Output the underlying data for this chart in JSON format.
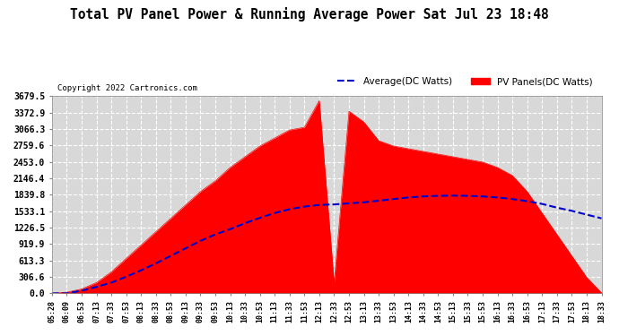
{
  "title": "Total PV Panel Power & Running Average Power Sat Jul 23 18:48",
  "copyright": "Copyright 2022 Cartronics.com",
  "legend_avg": "Average(DC Watts)",
  "legend_pv": "PV Panels(DC Watts)",
  "yticks": [
    0.0,
    306.6,
    613.3,
    919.9,
    1226.5,
    1533.1,
    1839.8,
    2146.4,
    2453.0,
    2759.6,
    3066.3,
    3372.9,
    3679.5
  ],
  "ymax": 3679.5,
  "ymin": 0.0,
  "bg_color": "#ffffff",
  "plot_bg_color": "#d8d8d8",
  "grid_color": "#ffffff",
  "pv_color": "#ff0000",
  "avg_color": "#0000cc",
  "xtick_labels": [
    "05:28",
    "06:09",
    "06:53",
    "07:13",
    "07:33",
    "07:53",
    "08:13",
    "08:33",
    "08:53",
    "09:13",
    "09:33",
    "09:53",
    "10:13",
    "10:33",
    "10:53",
    "11:13",
    "11:33",
    "11:53",
    "12:13",
    "12:33",
    "12:53",
    "13:13",
    "13:33",
    "13:53",
    "14:13",
    "14:33",
    "14:53",
    "15:13",
    "15:33",
    "15:53",
    "16:13",
    "16:33",
    "16:53",
    "17:13",
    "17:33",
    "17:53",
    "18:13",
    "18:33"
  ],
  "pv_values": [
    0,
    20,
    80,
    200,
    400,
    650,
    900,
    1150,
    1400,
    1650,
    1900,
    2100,
    2350,
    2550,
    2750,
    2900,
    3050,
    3100,
    3600,
    200,
    3400,
    3200,
    2850,
    2750,
    2700,
    2650,
    2600,
    2550,
    2500,
    2450,
    2350,
    2200,
    1900,
    1500,
    1100,
    700,
    300,
    10
  ],
  "avg_values": [
    0,
    0,
    50,
    120,
    200,
    310,
    430,
    560,
    700,
    840,
    980,
    1100,
    1200,
    1310,
    1410,
    1500,
    1570,
    1620,
    1650,
    1660,
    1680,
    1700,
    1730,
    1760,
    1790,
    1810,
    1820,
    1825,
    1820,
    1810,
    1790,
    1760,
    1720,
    1670,
    1600,
    1540,
    1470,
    1400
  ]
}
